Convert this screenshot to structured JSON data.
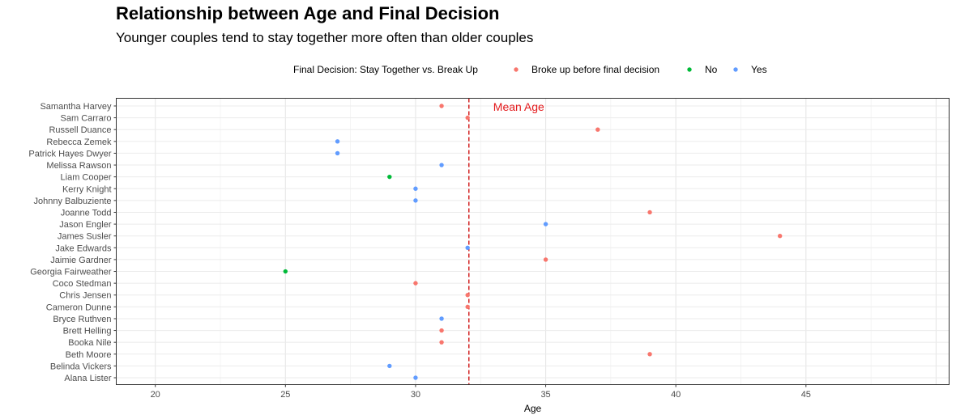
{
  "title": "Relationship between Age and Final Decision",
  "subtitle": "Younger couples tend to stay together more often than older couples",
  "legend": {
    "title": "Final Decision: Stay Together vs. Break Up",
    "entries": [
      {
        "label": "Broke up before final decision",
        "color": "#F8766D"
      },
      {
        "label": "No",
        "color": "#00BA38"
      },
      {
        "label": "Yes",
        "color": "#619CFF"
      }
    ]
  },
  "chart_data": {
    "type": "scatter",
    "title": "Relationship between Age and Final Decision",
    "subtitle": "Younger couples tend to stay together more often than older couples",
    "xlabel": "Age",
    "ylabel": "",
    "xlim": [
      18.5,
      50.5
    ],
    "xticks": [
      20,
      25,
      30,
      35,
      40,
      45
    ],
    "grid": true,
    "legend_position": "top",
    "mean_line": {
      "value": 32.05,
      "label": "Mean Age",
      "color": "#E41A1C"
    },
    "categories": [
      "Samantha Harvey",
      "Sam Carraro",
      "Russell Duance",
      "Rebecca Zemek",
      "Patrick Hayes Dwyer",
      "Melissa Rawson",
      "Liam Cooper",
      "Kerry Knight",
      "Johnny Balbuziente",
      "Joanne Todd",
      "Jason Engler",
      "James Susler",
      "Jake Edwards",
      "Jaimie Gardner",
      "Georgia Fairweather",
      "Coco Stedman",
      "Chris Jensen",
      "Cameron Dunne",
      "Bryce Ruthven",
      "Brett Helling",
      "Booka Nile",
      "Beth Moore",
      "Belinda Vickers",
      "Alana Lister"
    ],
    "points": [
      {
        "name": "Samantha Harvey",
        "age": 31,
        "decision": "Broke up before final decision"
      },
      {
        "name": "Sam Carraro",
        "age": 32,
        "decision": "Broke up before final decision"
      },
      {
        "name": "Russell Duance",
        "age": 37,
        "decision": "Broke up before final decision"
      },
      {
        "name": "Rebecca Zemek",
        "age": 27,
        "decision": "Yes"
      },
      {
        "name": "Patrick Hayes Dwyer",
        "age": 27,
        "decision": "Yes"
      },
      {
        "name": "Melissa Rawson",
        "age": 31,
        "decision": "Yes"
      },
      {
        "name": "Liam Cooper",
        "age": 29,
        "decision": "No"
      },
      {
        "name": "Kerry Knight",
        "age": 30,
        "decision": "Yes"
      },
      {
        "name": "Johnny Balbuziente",
        "age": 30,
        "decision": "Yes"
      },
      {
        "name": "Joanne Todd",
        "age": 39,
        "decision": "Broke up before final decision"
      },
      {
        "name": "Jason Engler",
        "age": 35,
        "decision": "Yes"
      },
      {
        "name": "James Susler",
        "age": 44,
        "decision": "Broke up before final decision"
      },
      {
        "name": "Jake Edwards",
        "age": 32,
        "decision": "Yes"
      },
      {
        "name": "Jaimie Gardner",
        "age": 35,
        "decision": "Broke up before final decision"
      },
      {
        "name": "Georgia Fairweather",
        "age": 25,
        "decision": "No"
      },
      {
        "name": "Coco Stedman",
        "age": 30,
        "decision": "Broke up before final decision"
      },
      {
        "name": "Chris Jensen",
        "age": 32,
        "decision": "Broke up before final decision"
      },
      {
        "name": "Cameron Dunne",
        "age": 32,
        "decision": "Broke up before final decision"
      },
      {
        "name": "Bryce Ruthven",
        "age": 31,
        "decision": "Yes"
      },
      {
        "name": "Brett Helling",
        "age": 31,
        "decision": "Broke up before final decision"
      },
      {
        "name": "Booka Nile",
        "age": 31,
        "decision": "Broke up before final decision"
      },
      {
        "name": "Beth Moore",
        "age": 39,
        "decision": "Broke up before final decision"
      },
      {
        "name": "Belinda Vickers",
        "age": 29,
        "decision": "Yes"
      },
      {
        "name": "Alana Lister",
        "age": 30,
        "decision": "Yes"
      }
    ]
  }
}
